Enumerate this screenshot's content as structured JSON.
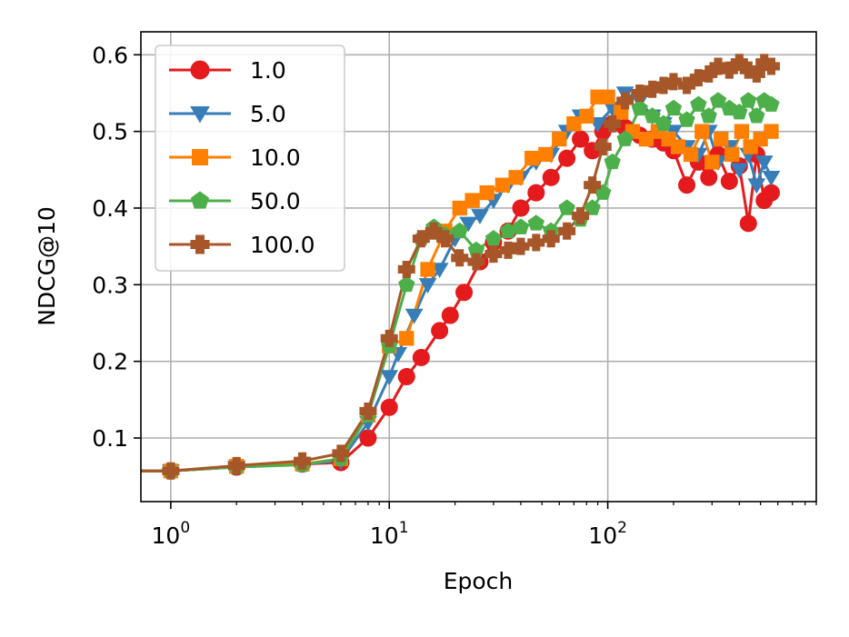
{
  "chart_data": {
    "type": "line",
    "title": "",
    "xlabel": "Epoch",
    "ylabel": "NDCG@10",
    "xscale": "log",
    "xlim": [
      0.73,
      900
    ],
    "ylim": [
      0.017,
      0.63
    ],
    "x_ticks": [
      {
        "value": 1,
        "base": "10",
        "exp": "0"
      },
      {
        "value": 10,
        "base": "10",
        "exp": "1"
      },
      {
        "value": 100,
        "base": "10",
        "exp": "2"
      }
    ],
    "y_ticks": [
      {
        "value": 0.1,
        "label": "0.1"
      },
      {
        "value": 0.2,
        "label": "0.2"
      },
      {
        "value": 0.3,
        "label": "0.3"
      },
      {
        "value": 0.4,
        "label": "0.4"
      },
      {
        "value": 0.5,
        "label": "0.5"
      },
      {
        "value": 0.6,
        "label": "0.6"
      }
    ],
    "grid": true,
    "legend_position": "upper-left",
    "series": [
      {
        "name": "1.0",
        "color": "#e41a1c",
        "marker": "circle",
        "x": [
          0.7,
          1,
          2,
          4,
          6,
          8,
          10,
          12,
          14,
          17,
          19,
          22,
          26,
          30,
          35,
          40,
          47,
          55,
          65,
          75,
          85,
          95,
          105,
          120,
          140,
          160,
          180,
          200,
          230,
          260,
          290,
          320,
          360,
          400,
          440,
          480,
          520,
          560
        ],
        "y": [
          0.057,
          0.057,
          0.062,
          0.066,
          0.068,
          0.1,
          0.14,
          0.18,
          0.205,
          0.24,
          0.26,
          0.29,
          0.33,
          0.355,
          0.37,
          0.4,
          0.42,
          0.44,
          0.465,
          0.49,
          0.475,
          0.5,
          0.51,
          0.505,
          0.495,
          0.49,
          0.485,
          0.475,
          0.43,
          0.46,
          0.44,
          0.47,
          0.435,
          0.455,
          0.38,
          0.47,
          0.41,
          0.42
        ]
      },
      {
        "name": "5.0",
        "color": "#377eb8",
        "marker": "triangle-down",
        "x": [
          0.7,
          1,
          2,
          4,
          6,
          8,
          10,
          11,
          13,
          15,
          17,
          20,
          23,
          26,
          30,
          35,
          40,
          47,
          55,
          65,
          75,
          90,
          105,
          120,
          140,
          160,
          180,
          200,
          230,
          260,
          290,
          320,
          360,
          400,
          440,
          480,
          520,
          560
        ],
        "y": [
          0.057,
          0.057,
          0.062,
          0.066,
          0.07,
          0.12,
          0.18,
          0.21,
          0.26,
          0.3,
          0.32,
          0.36,
          0.38,
          0.39,
          0.41,
          0.43,
          0.44,
          0.46,
          0.47,
          0.5,
          0.52,
          0.51,
          0.53,
          0.55,
          0.54,
          0.52,
          0.51,
          0.5,
          0.48,
          0.47,
          0.5,
          0.46,
          0.48,
          0.45,
          0.47,
          0.43,
          0.46,
          0.44
        ]
      },
      {
        "name": "10.0",
        "color": "#ff7f00",
        "marker": "square",
        "x": [
          0.7,
          1,
          2,
          4,
          6,
          8,
          10,
          12,
          15,
          18,
          21,
          24,
          28,
          33,
          38,
          45,
          52,
          60,
          70,
          80,
          90,
          100,
          115,
          130,
          150,
          170,
          190,
          210,
          240,
          270,
          300,
          330,
          370,
          410,
          450,
          500,
          560
        ],
        "y": [
          0.057,
          0.057,
          0.063,
          0.066,
          0.073,
          0.13,
          0.22,
          0.23,
          0.32,
          0.37,
          0.4,
          0.41,
          0.42,
          0.43,
          0.44,
          0.465,
          0.47,
          0.49,
          0.51,
          0.52,
          0.545,
          0.545,
          0.525,
          0.5,
          0.49,
          0.5,
          0.49,
          0.48,
          0.47,
          0.5,
          0.46,
          0.49,
          0.47,
          0.5,
          0.48,
          0.49,
          0.5
        ]
      },
      {
        "name": "50.0",
        "color": "#4daf4a",
        "marker": "pentagon",
        "x": [
          0.7,
          1,
          2,
          4,
          6,
          8,
          10,
          12,
          14,
          16,
          18,
          21,
          25,
          30,
          35,
          40,
          47,
          55,
          65,
          75,
          85,
          95,
          105,
          120,
          140,
          160,
          180,
          200,
          230,
          260,
          290,
          320,
          360,
          400,
          440,
          480,
          520,
          560
        ],
        "y": [
          0.057,
          0.057,
          0.062,
          0.065,
          0.073,
          0.13,
          0.22,
          0.3,
          0.36,
          0.375,
          0.365,
          0.37,
          0.345,
          0.36,
          0.37,
          0.375,
          0.38,
          0.37,
          0.4,
          0.385,
          0.4,
          0.42,
          0.46,
          0.49,
          0.53,
          0.52,
          0.51,
          0.53,
          0.515,
          0.535,
          0.52,
          0.54,
          0.53,
          0.525,
          0.54,
          0.52,
          0.54,
          0.535
        ]
      },
      {
        "name": "100.0",
        "color": "#a65628",
        "marker": "plus",
        "x": [
          0.7,
          1,
          2,
          4,
          6,
          8,
          10,
          12,
          14,
          16,
          18,
          21,
          25,
          30,
          35,
          40,
          47,
          55,
          65,
          75,
          85,
          95,
          105,
          120,
          140,
          160,
          180,
          200,
          230,
          260,
          290,
          320,
          360,
          400,
          440,
          480,
          520,
          560
        ],
        "y": [
          0.057,
          0.057,
          0.064,
          0.07,
          0.08,
          0.135,
          0.23,
          0.32,
          0.36,
          0.37,
          0.36,
          0.335,
          0.33,
          0.34,
          0.345,
          0.35,
          0.355,
          0.36,
          0.37,
          0.39,
          0.43,
          0.48,
          0.51,
          0.54,
          0.55,
          0.555,
          0.56,
          0.565,
          0.56,
          0.57,
          0.575,
          0.585,
          0.58,
          0.59,
          0.58,
          0.575,
          0.59,
          0.585
        ]
      }
    ]
  }
}
